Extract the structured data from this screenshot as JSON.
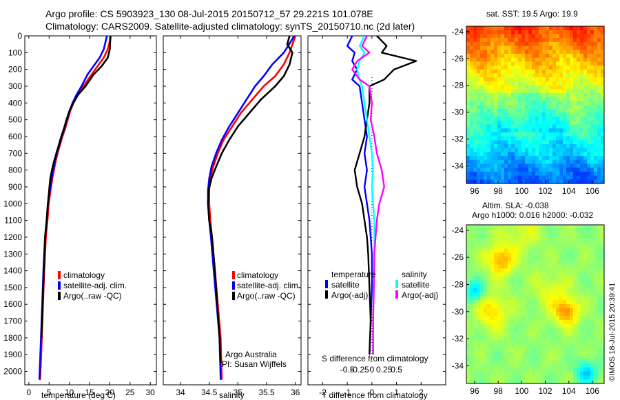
{
  "header": {
    "line1": "Argo profile: CS 5903923_130 08-Jul-2015 20150712_57 29.221S 101.078E",
    "line2": "Climatology: CARS2009. Satellite-adjusted climatology: synTS_20150710.nc (2d later)"
  },
  "colors": {
    "climatology": "#ff0000",
    "satellite": "#0000ff",
    "argo": "#000000",
    "sal_satellite": "#00ffff",
    "sal_argo": "#ff00ff"
  },
  "chart_data": [
    {
      "type": "line",
      "title": "",
      "xlabel": "temperature (deg C)",
      "ylabel": "",
      "xlim": [
        -1,
        31.5
      ],
      "ylim": [
        2080,
        0
      ],
      "xticks": [
        0,
        5,
        10,
        15,
        20,
        25,
        30
      ],
      "yticks": [
        0,
        100,
        200,
        300,
        400,
        500,
        600,
        700,
        800,
        900,
        1000,
        1100,
        1200,
        1300,
        1400,
        1500,
        1600,
        1700,
        1800,
        1900,
        2000
      ],
      "legend": {
        "placement": "lower-center",
        "entries": [
          "climatology",
          "satellite-adj. clim.",
          "Argo(..raw -QC)"
        ]
      },
      "series": [
        {
          "name": "climatology",
          "color": "#ff0000",
          "x": [
            20.1,
            20.0,
            19.5,
            18.5,
            17.0,
            15.5,
            13.5,
            12.0,
            11.0,
            10.2,
            9.6,
            9.0,
            8.3,
            7.7,
            7.1,
            6.6,
            6.2,
            5.8,
            5.5,
            5.2,
            4.9,
            4.6,
            4.2,
            3.8,
            3.5,
            3.2,
            2.8
          ],
          "y": [
            0,
            30,
            80,
            130,
            180,
            230,
            300,
            350,
            400,
            450,
            500,
            550,
            600,
            650,
            700,
            750,
            800,
            850,
            900,
            950,
            1000,
            1100,
            1200,
            1400,
            1600,
            1800,
            2050
          ]
        },
        {
          "name": "satellite-adj. clim.",
          "color": "#0000ff",
          "x": [
            19.3,
            19.0,
            18.5,
            17.5,
            16.0,
            14.5,
            13.0,
            11.8,
            10.8,
            10.0,
            9.4,
            8.8,
            8.1,
            7.5,
            6.9,
            6.4,
            6.0,
            5.6,
            5.3,
            5.0,
            4.7,
            4.4,
            4.0,
            3.6,
            3.3,
            3.0,
            2.6
          ],
          "y": [
            0,
            30,
            80,
            130,
            180,
            230,
            300,
            350,
            400,
            450,
            500,
            550,
            600,
            650,
            700,
            750,
            800,
            850,
            900,
            950,
            1000,
            1100,
            1200,
            1400,
            1600,
            1800,
            2050
          ]
        },
        {
          "name": "Argo(..raw -QC)",
          "color": "#000000",
          "x": [
            20.2,
            20.1,
            20.0,
            19.5,
            18.0,
            16.0,
            14.0,
            12.2,
            11.0,
            10.0,
            9.3,
            8.7,
            8.0,
            7.4,
            6.8,
            6.2,
            5.7,
            5.3,
            5.1,
            4.9,
            4.7,
            4.4,
            4.0,
            3.7,
            3.4,
            3.1
          ],
          "y": [
            0,
            30,
            80,
            130,
            180,
            230,
            300,
            350,
            400,
            450,
            500,
            550,
            600,
            650,
            700,
            750,
            800,
            850,
            900,
            950,
            1000,
            1100,
            1200,
            1400,
            1600,
            1800
          ]
        }
      ]
    },
    {
      "type": "line",
      "title": "",
      "xlabel": "salinity",
      "ylabel": "",
      "xlim": [
        33.7,
        36.1
      ],
      "ylim": [
        2080,
        0
      ],
      "xticks": [
        34,
        34.5,
        35,
        35.5,
        36
      ],
      "legend": {
        "placement": "lower-center",
        "entries": [
          "climatology",
          "satellite-adj. clim.",
          "Argo(..raw -QC)"
        ]
      },
      "annotations": [
        "Argo Australia",
        "PI: Susan Wijffels"
      ],
      "series": [
        {
          "name": "climatology",
          "color": "#ff0000",
          "x": [
            36.0,
            35.97,
            35.9,
            35.8,
            35.65,
            35.45,
            35.25,
            35.05,
            34.9,
            34.75,
            34.65,
            34.57,
            34.52,
            34.5,
            34.5,
            34.52,
            34.55,
            34.6,
            34.65,
            34.7,
            34.72
          ],
          "y": [
            0,
            30,
            100,
            170,
            240,
            300,
            380,
            460,
            540,
            620,
            700,
            780,
            850,
            920,
            1000,
            1100,
            1200,
            1400,
            1600,
            1800,
            2050
          ]
        },
        {
          "name": "satellite-adj. clim.",
          "color": "#0000ff",
          "x": [
            35.98,
            35.93,
            35.8,
            35.6,
            35.45,
            35.3,
            35.15,
            35.0,
            34.85,
            34.72,
            34.62,
            34.54,
            34.5,
            34.48,
            34.48,
            34.5,
            34.53,
            34.58,
            34.63,
            34.68,
            34.7
          ],
          "y": [
            0,
            30,
            100,
            170,
            240,
            300,
            380,
            460,
            540,
            620,
            700,
            780,
            850,
            920,
            1000,
            1100,
            1200,
            1400,
            1600,
            1800,
            2050
          ]
        },
        {
          "name": "Argo(..raw -QC)",
          "color": "#000000",
          "x": [
            35.9,
            35.86,
            35.95,
            35.9,
            35.8,
            35.65,
            35.4,
            35.2,
            35.0,
            34.85,
            34.72,
            34.62,
            34.54,
            34.49,
            34.48,
            34.5,
            34.55,
            34.6,
            34.64,
            34.68,
            34.7
          ],
          "y": [
            0,
            50,
            100,
            170,
            240,
            300,
            380,
            460,
            540,
            620,
            700,
            780,
            850,
            920,
            1000,
            1100,
            1200,
            1400,
            1600,
            1800,
            1950
          ]
        }
      ]
    },
    {
      "type": "line",
      "title": "",
      "xlabel": "T difference from climatology",
      "xlabel2": "S difference from climatology",
      "ylabel": "",
      "xlim": [
        -2.6,
        3.0
      ],
      "ylim": [
        2080,
        0
      ],
      "xticks": [
        -2,
        -1,
        0,
        1,
        2
      ],
      "xticks_s": [
        "-0.5",
        "-0.25",
        "0",
        "0.25",
        "0.5"
      ],
      "legend": {
        "placement": "lower-center",
        "temperature_heading": "temperature",
        "salinity_heading": "salinity",
        "entries": [
          "satellite",
          "Argo(-adj)",
          "satellite",
          "Argo(-adj)"
        ]
      },
      "series": [
        {
          "name": "satellite",
          "group": "temperature",
          "color": "#0000ff",
          "x": [
            -0.8,
            -1.0,
            -0.7,
            -0.8,
            -0.6,
            -0.8,
            -0.5,
            -0.4,
            -0.3,
            -0.2,
            -0.3,
            -0.2,
            -0.3,
            -0.2,
            -0.1,
            -0.05,
            0.0,
            0.0,
            -0.05,
            -0.1
          ],
          "y": [
            0,
            60,
            100,
            150,
            200,
            260,
            300,
            400,
            500,
            600,
            700,
            800,
            900,
            1000,
            1100,
            1200,
            1300,
            1500,
            1700,
            1900
          ]
        },
        {
          "name": "Argo(-adj)",
          "group": "temperature",
          "color": "#000000",
          "x": [
            0.2,
            0.6,
            0.4,
            1.8,
            0.9,
            0.5,
            -0.1,
            -0.1,
            -0.2,
            -0.3,
            -0.5,
            -0.7,
            -0.6,
            -0.4,
            -0.3,
            -0.2,
            -0.15,
            -0.1,
            -0.05,
            -0.1
          ],
          "y": [
            0,
            60,
            100,
            150,
            200,
            260,
            300,
            400,
            500,
            600,
            700,
            800,
            900,
            1000,
            1100,
            1200,
            1300,
            1500,
            1700,
            1900
          ]
        },
        {
          "name": "satellite",
          "group": "salinity",
          "color": "#00ffff",
          "x": [
            -0.3,
            -0.5,
            -0.3,
            -0.5,
            -0.6,
            -0.5,
            -0.4,
            -0.3,
            -0.2,
            -0.1,
            0.0,
            0.05,
            0.0,
            0.05,
            0.1,
            0.1,
            0.1,
            0.08,
            0.05,
            0.05
          ],
          "y": [
            0,
            60,
            100,
            150,
            200,
            260,
            300,
            400,
            500,
            600,
            700,
            800,
            900,
            1000,
            1100,
            1200,
            1300,
            1500,
            1700,
            1900
          ]
        },
        {
          "name": "Argo(-adj)",
          "group": "salinity",
          "color": "#ff00ff",
          "x": [
            -0.2,
            -0.4,
            -0.1,
            -0.6,
            -0.8,
            -0.5,
            -0.1,
            0.0,
            -0.05,
            0.1,
            0.2,
            0.4,
            0.5,
            0.3,
            0.2,
            0.15,
            0.1,
            0.08,
            0.05,
            0.05
          ],
          "y": [
            0,
            60,
            100,
            150,
            200,
            260,
            300,
            400,
            500,
            600,
            700,
            800,
            900,
            1000,
            1100,
            1200,
            1300,
            1500,
            1700,
            1900
          ]
        }
      ]
    },
    {
      "type": "heatmap",
      "title": "sat. SST: 19.5 Argo: 19.9",
      "xlim": [
        95.3,
        107.0
      ],
      "ylim": [
        -35.3,
        -23.6
      ],
      "xticks": [
        96,
        98,
        100,
        102,
        104,
        106
      ],
      "yticks": [
        -24,
        -26,
        -28,
        -30,
        -32,
        -34
      ],
      "colormap": "jet",
      "value_range": [
        15,
        23
      ],
      "field": {
        "summary": "warm (orange) north, cooling through yellow/green to blue in the south"
      }
    },
    {
      "type": "heatmap",
      "title": "Altim. SLA: -0.038",
      "subtitle": "Argo h1000: 0.016 h2000: -0.032",
      "xlim": [
        95.3,
        107.0
      ],
      "ylim": [
        -35.3,
        -23.6
      ],
      "xticks": [
        96,
        98,
        100,
        102,
        104,
        106
      ],
      "yticks": [
        -24,
        -26,
        -28,
        -30,
        -32,
        -34
      ],
      "colormap": "jet",
      "value_range": [
        -0.3,
        0.3
      ],
      "field": {
        "summary": "green background with warm (orange) eddies near 98E 26S, 98E 30S and 104E 30S"
      }
    }
  ],
  "stamp": "©IMOS 18-Jul-2015 20:39:41"
}
